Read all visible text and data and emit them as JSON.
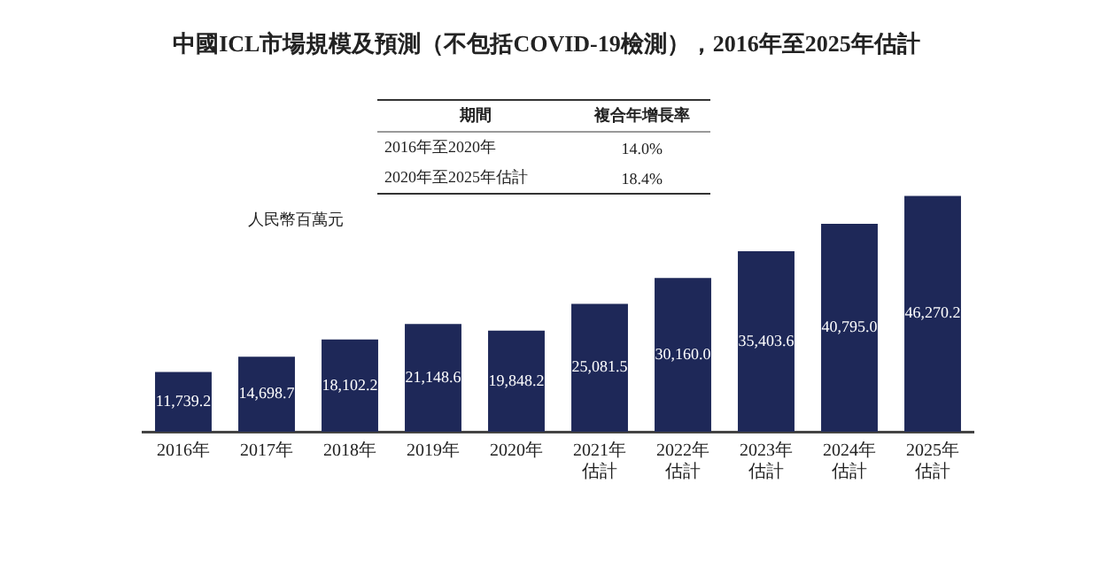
{
  "chart_data": {
    "type": "bar",
    "title": "中國ICL市場規模及預測（不包括COVID-19檢測），2016年至2025年估計",
    "categories": [
      "2016年",
      "2017年",
      "2018年",
      "2019年",
      "2020年",
      "2021年估計",
      "2022年估計",
      "2023年估計",
      "2024年估計",
      "2025年估計"
    ],
    "values": [
      11739.2,
      14698.7,
      18102.2,
      21148.6,
      19848.2,
      25081.5,
      30160.0,
      35403.6,
      40795.0,
      46270.2
    ],
    "value_labels": [
      "11,739.2",
      "14,698.7",
      "18,102.2",
      "21,148.6",
      "19,848.2",
      "25,081.5",
      "30,160.0",
      "35,403.6",
      "40,795.0",
      "46,270.2"
    ],
    "color": "#1e2858",
    "ylabel": "人民幣百萬元",
    "annotations": [
      "期間",
      "複合年增長率",
      "2016年至2020年",
      "14.0%",
      "2020年至2025年估計",
      "18.4%"
    ],
    "grid": false,
    "legend": false
  }
}
